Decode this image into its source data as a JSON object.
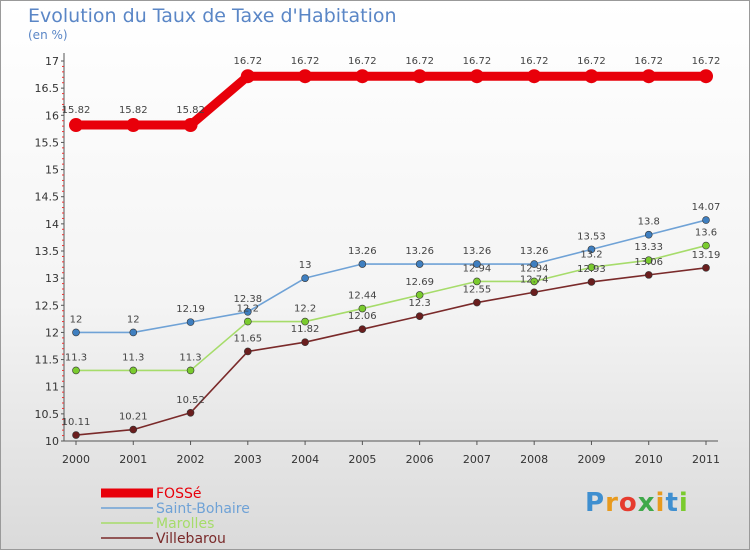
{
  "chart_data": {
    "type": "line",
    "title": "Evolution du Taux de Taxe d'Habitation",
    "subtitle": "(en %)",
    "x": [
      "2000",
      "2001",
      "2002",
      "2003",
      "2004",
      "2005",
      "2006",
      "2007",
      "2008",
      "2009",
      "2010",
      "2011"
    ],
    "ylim": [
      10,
      17
    ],
    "yticks": [
      "10",
      "10.5",
      "11",
      "11.5",
      "12",
      "12.5",
      "13",
      "13.5",
      "14",
      "14.5",
      "15",
      "15.5",
      "16",
      "16.5",
      "17"
    ],
    "grid": false,
    "legend_position": "bottom-left",
    "series": [
      {
        "name": "FOSSé",
        "color": "#e8000a",
        "style": "thick",
        "values": [
          15.82,
          15.82,
          15.82,
          16.72,
          16.72,
          16.72,
          16.72,
          16.72,
          16.72,
          16.72,
          16.72,
          16.72
        ],
        "labels": [
          "15.82",
          "15.82",
          "15.82",
          "16.72",
          "16.72",
          "16.72",
          "16.72",
          "16.72",
          "16.72",
          "16.72",
          "16.72",
          "16.72"
        ]
      },
      {
        "name": "Saint-Bohaire",
        "color": "#6fa2d6",
        "marker": "#3f7fc0",
        "values": [
          12,
          12,
          12.19,
          12.38,
          13,
          13.26,
          13.26,
          13.26,
          13.26,
          13.53,
          13.8,
          14.07
        ],
        "labels": [
          "12",
          "12",
          "12.19",
          "12.38",
          "13",
          "13.26",
          "13.26",
          "13.26",
          "13.26",
          "13.53",
          "13.8",
          "14.07"
        ]
      },
      {
        "name": "Marolles",
        "color": "#a6dc6a",
        "marker": "#7acb2e",
        "values": [
          11.3,
          11.3,
          11.3,
          12.2,
          12.2,
          12.44,
          12.69,
          12.94,
          12.94,
          13.2,
          13.33,
          13.6
        ],
        "labels": [
          "11.3",
          "11.3",
          "11.3",
          "12.2",
          "12.2",
          "12.44",
          "12.69",
          "12.94",
          "12.94",
          "13.2",
          "13.33",
          "13.6"
        ]
      },
      {
        "name": "Villebarou",
        "color": "#7a2a2a",
        "marker": "#6a1e1e",
        "values": [
          10.11,
          10.21,
          10.52,
          11.65,
          11.82,
          12.06,
          12.3,
          12.55,
          12.74,
          12.93,
          13.06,
          13.19
        ],
        "labels": [
          "10.11",
          "10.21",
          "10.52",
          "11.65",
          "11.82",
          "12.06",
          "12.3",
          "12.55",
          "12.74",
          "12.93",
          "13.06",
          "13.19"
        ]
      }
    ]
  },
  "brand": {
    "text": "Proxiti",
    "letter_colors": [
      "#3f8fd0",
      "#e89a1e",
      "#e63b2e",
      "#3fa94a",
      "#e89a1e",
      "#3f8fd0",
      "#7acb2e"
    ]
  }
}
